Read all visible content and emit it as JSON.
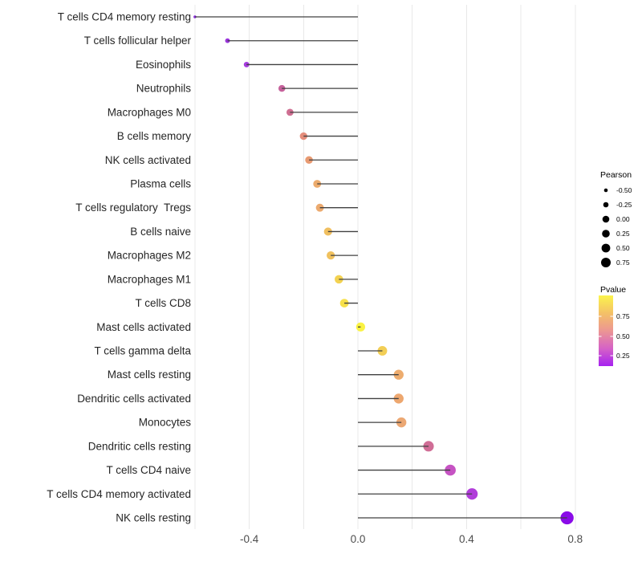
{
  "chart_data": {
    "type": "scatter",
    "subtype": "lollipop",
    "title": "",
    "xlabel": "",
    "ylabel": "",
    "xlim": [
      -0.65,
      0.85
    ],
    "x_ticks": [
      -0.4,
      0.0,
      0.4,
      0.8
    ],
    "x_tick_labels": [
      "-0.4",
      "0.0",
      "0.4",
      "0.8"
    ],
    "gridlines_x": [
      -0.6,
      -0.4,
      -0.2,
      0.0,
      0.2,
      0.4,
      0.6,
      0.8
    ],
    "grid_color": "#e8e8e8",
    "stem_color": "#404040",
    "axis_text_color": "#4d4d4d",
    "label_text_color": "#262626",
    "rows": [
      {
        "label": "T cells CD4 memory resting",
        "pearson": -0.6,
        "dot_color": "#8B2BE0"
      },
      {
        "label": "T cells follicular helper",
        "pearson": -0.48,
        "dot_color": "#9A35DC"
      },
      {
        "label": "Eosinophils",
        "pearson": -0.41,
        "dot_color": "#A53BDE"
      },
      {
        "label": "Neutrophils",
        "pearson": -0.28,
        "dot_color": "#C6619B"
      },
      {
        "label": "Macrophages M0",
        "pearson": -0.25,
        "dot_color": "#CF6F92"
      },
      {
        "label": "B cells memory",
        "pearson": -0.2,
        "dot_color": "#E58D7B"
      },
      {
        "label": "NK cells activated",
        "pearson": -0.18,
        "dot_color": "#E89A72"
      },
      {
        "label": "Plasma cells",
        "pearson": -0.15,
        "dot_color": "#ECAB6D"
      },
      {
        "label": "T cells regulatory  Tregs",
        "pearson": -0.14,
        "dot_color": "#ECAA6F"
      },
      {
        "label": "B cells naive",
        "pearson": -0.11,
        "dot_color": "#F0BF60"
      },
      {
        "label": "Macrophages M2",
        "pearson": -0.1,
        "dot_color": "#F0C15E"
      },
      {
        "label": "Macrophages M1",
        "pearson": -0.07,
        "dot_color": "#F3D251"
      },
      {
        "label": "T cells CD8",
        "pearson": -0.05,
        "dot_color": "#F7E04A"
      },
      {
        "label": "Mast cells activated",
        "pearson": 0.01,
        "dot_color": "#FAF243"
      },
      {
        "label": "T cells gamma delta",
        "pearson": 0.09,
        "dot_color": "#F2CE55"
      },
      {
        "label": "Mast cells resting",
        "pearson": 0.15,
        "dot_color": "#EDAC6E"
      },
      {
        "label": "Dendritic cells activated",
        "pearson": 0.15,
        "dot_color": "#EDA76F"
      },
      {
        "label": "Monocytes",
        "pearson": 0.16,
        "dot_color": "#ECA873"
      },
      {
        "label": "Dendritic cells resting",
        "pearson": 0.26,
        "dot_color": "#D06D96"
      },
      {
        "label": "T cells CD4 naive",
        "pearson": 0.34,
        "dot_color": "#C653C3"
      },
      {
        "label": "T cells CD4 memory activated",
        "pearson": 0.42,
        "dot_color": "#B13DDA"
      },
      {
        "label": "NK cells resting",
        "pearson": 0.77,
        "dot_color": "#8A0BE8"
      }
    ],
    "legend_size": {
      "title": "Pearson",
      "labels": [
        "-0.50",
        "-0.25",
        "0.00",
        "0.25",
        "0.50",
        "0.75"
      ],
      "key_color": "#000000"
    },
    "legend_color": {
      "title": "Pvalue",
      "tick_labels": [
        "0.75",
        "0.50",
        "0.25"
      ],
      "gradient_top_to_bottom": [
        "#FBF44C",
        "#F4C167",
        "#EC9693",
        "#D662C6",
        "#A622F0"
      ]
    },
    "legend_position": "right"
  }
}
